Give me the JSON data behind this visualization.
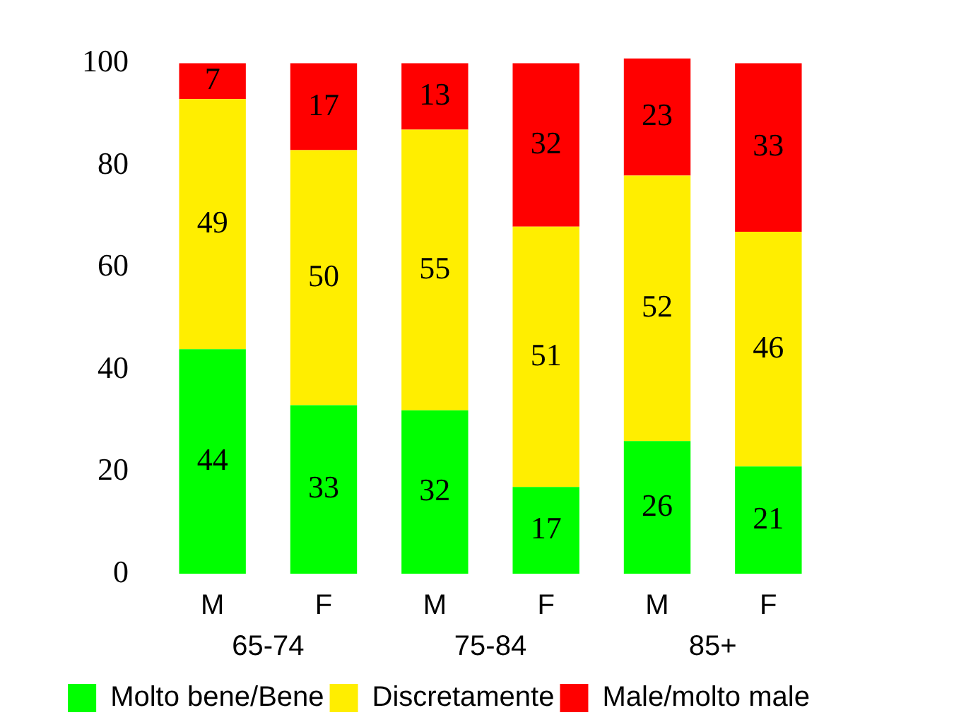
{
  "chart_data": {
    "type": "bar",
    "stacked": true,
    "categories": [
      "M",
      "F",
      "M",
      "F",
      "M",
      "F"
    ],
    "series": [
      {
        "name": "Molto bene/Bene",
        "color": "#00ff00",
        "values": [
          44,
          33,
          32,
          17,
          26,
          21
        ]
      },
      {
        "name": "Discretamente",
        "color": "#ffee00",
        "values": [
          49,
          50,
          55,
          51,
          52,
          46
        ]
      },
      {
        "name": "Male/molto male",
        "color": "#ff0000",
        "values": [
          7,
          17,
          13,
          32,
          23,
          33
        ]
      }
    ],
    "annotations": [
      "65-74",
      "75-84",
      "85+"
    ],
    "ylim": [
      0,
      101
    ],
    "yticks": [
      0,
      20,
      40,
      60,
      80,
      100
    ],
    "data_labels": true,
    "legend": "bottom",
    "grid": false
  }
}
